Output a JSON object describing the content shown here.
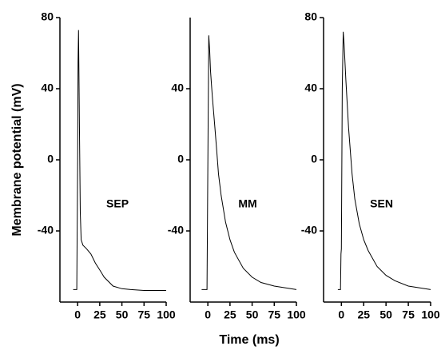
{
  "chart_data": [
    {
      "type": "line",
      "ylabel": "Membrane potential (mV)",
      "annotation": "SEP",
      "x": [
        -5,
        -1,
        0,
        0.5,
        1,
        2,
        3,
        4,
        6,
        10,
        15,
        20,
        25,
        30,
        40,
        50,
        60,
        75,
        100
      ],
      "values": [
        -73,
        -73,
        0,
        55,
        73,
        20,
        -30,
        -45,
        -48,
        -50,
        -53,
        -58,
        -62,
        -66,
        -71,
        -72.5,
        -73,
        -73.5,
        -73.5
      ],
      "color": "#000000",
      "xlim": [
        -20,
        100
      ],
      "ylim": [
        -80,
        80
      ],
      "xticks": [
        0,
        25,
        50,
        75,
        100
      ],
      "yticks": [
        80,
        40,
        0,
        -40
      ]
    },
    {
      "type": "line",
      "xlabel": "Time (ms)",
      "annotation": "MM",
      "x": [
        -7,
        -1,
        0,
        1,
        2,
        3,
        5,
        8,
        10,
        12,
        15,
        20,
        25,
        30,
        40,
        50,
        60,
        75,
        100
      ],
      "values": [
        -73,
        -73,
        0,
        70,
        62,
        50,
        36,
        18,
        5,
        -8,
        -20,
        -35,
        -45,
        -52,
        -61,
        -66,
        -69,
        -71,
        -73
      ],
      "color": "#000000",
      "xlim": [
        -20,
        100
      ],
      "ylim": [
        -80,
        80
      ],
      "xticks": [
        0,
        25,
        50,
        75,
        100
      ],
      "yticks": [
        40,
        0,
        -40
      ]
    },
    {
      "type": "line",
      "annotation": "SEN",
      "x": [
        -4,
        -1,
        -0.5,
        0,
        1,
        2,
        3,
        5,
        8,
        10,
        12,
        15,
        20,
        25,
        30,
        40,
        50,
        60,
        75,
        100
      ],
      "values": [
        -73,
        -73,
        -53,
        -50,
        40,
        72,
        65,
        45,
        18,
        5,
        -8,
        -22,
        -36,
        -45,
        -51,
        -60,
        -65,
        -68,
        -71,
        -73
      ],
      "color": "#000000",
      "xlim": [
        -20,
        100
      ],
      "ylim": [
        -80,
        80
      ],
      "xticks": [
        0,
        25,
        50,
        75,
        100
      ],
      "yticks": [
        80,
        40,
        0,
        -40
      ]
    }
  ]
}
